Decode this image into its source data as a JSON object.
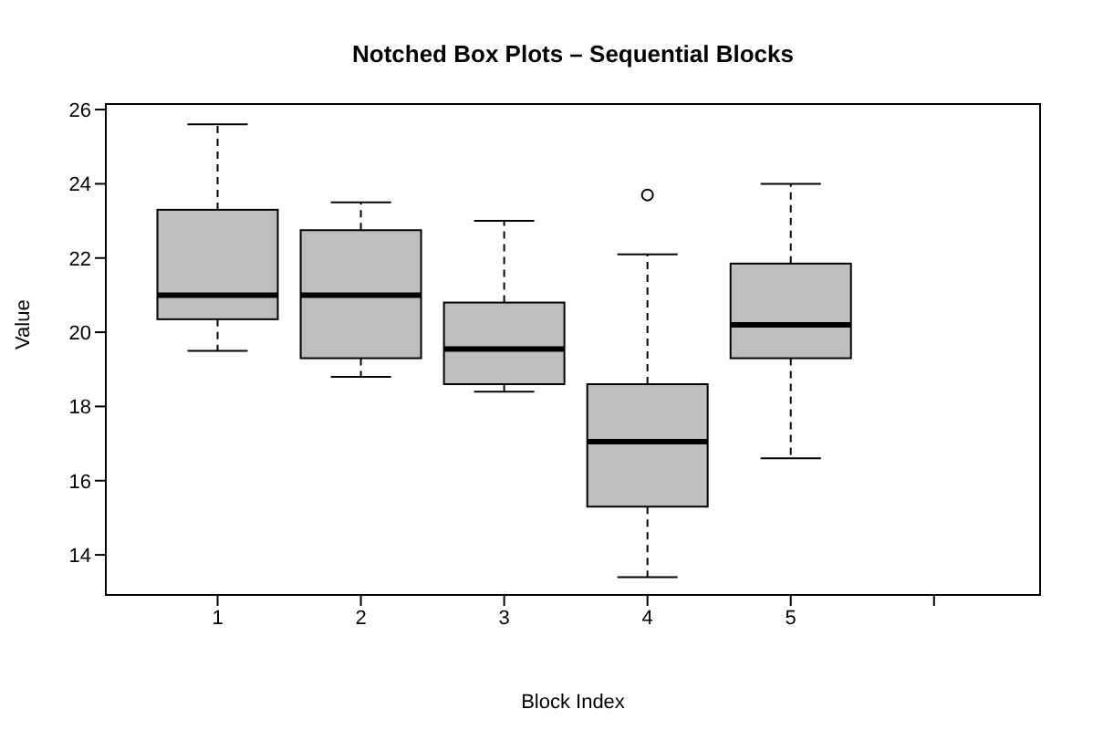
{
  "chart_data": {
    "type": "box",
    "title": "Notched Box Plots – Sequential Blocks",
    "xlabel": "Block Index",
    "ylabel": "Value",
    "x": [
      1,
      2,
      3,
      4,
      5
    ],
    "xlim": [
      0.22,
      6.74
    ],
    "xticks": [
      1,
      2,
      3,
      4,
      5,
      {
        "value": 6,
        "label": null
      }
    ],
    "ylim": [
      12.92,
      26.15
    ],
    "yticks": [
      14,
      16,
      18,
      20,
      22,
      24,
      26
    ],
    "color": "#bebebe",
    "boxes": [
      {
        "low": 19.5,
        "q1": 20.35,
        "median": 21.0,
        "q3": 23.3,
        "high": 25.6
      },
      {
        "low": 18.8,
        "q1": 19.3,
        "median": 21.0,
        "q3": 22.75,
        "high": 23.5
      },
      {
        "low": 18.4,
        "q1": 18.6,
        "median": 19.55,
        "q3": 20.8,
        "high": 23.0
      },
      {
        "low": 13.4,
        "q1": 15.3,
        "median": 17.05,
        "q3": 18.6,
        "high": 22.1,
        "outliers": [
          23.7
        ]
      },
      {
        "low": 16.6,
        "q1": 19.3,
        "median": 20.2,
        "q3": 21.85,
        "high": 24.0
      }
    ]
  }
}
